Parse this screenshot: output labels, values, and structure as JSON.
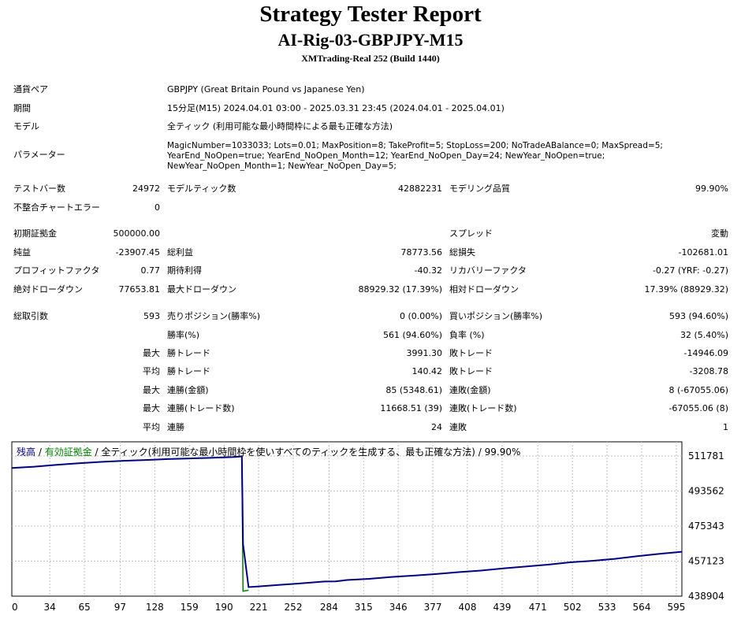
{
  "report": {
    "title": "Strategy Tester Report",
    "ea_name": "AI-Rig-03-GBPJPY-M15",
    "server": "XMTrading-Real 252 (Build 1440)"
  },
  "settings": {
    "symbol_label": "通貨ペア",
    "symbol_value": "GBPJPY (Great Britain Pound vs Japanese Yen)",
    "period_label": "期間",
    "period_value": "15分足(M15) 2024.04.01 03:00 - 2025.03.31 23:45 (2024.04.01 - 2025.04.01)",
    "model_label": "モデル",
    "model_value": "全ティック (利用可能な最小時間枠による最も正確な方法)",
    "params_label": "パラメーター",
    "params_lines": [
      "MagicNumber=1033033; Lots=0.01; MaxPosition=8; TakeProfit=5; StopLoss=200; NoTradeABalance=0; MaxSpread=5;",
      "YearEnd_NoOpen=true; YearEnd_NoOpen_Month=12; YearEnd_NoOpen_Day=24; NewYear_NoOpen=true;",
      "NewYear_NoOpen_Month=1; NewYear_NoOpen_Day=5;"
    ]
  },
  "test": {
    "bars_label": "テストバー数",
    "bars_value": "24972",
    "ticks_label": "モデルティック数",
    "ticks_value": "42882231",
    "quality_label": "モデリング品質",
    "quality_value": "99.90%",
    "errors_label": "不整合チャートエラー",
    "errors_value": "0"
  },
  "results": {
    "deposit_label": "初期証拠金",
    "deposit_value": "500000.00",
    "spread_label": "スプレッド",
    "spread_value": "変動",
    "net_label": "純益",
    "net_value": "-23907.45",
    "gross_profit_label": "総利益",
    "gross_profit_value": "78773.56",
    "gross_loss_label": "総損失",
    "gross_loss_value": "-102681.01",
    "pf_label": "プロフィットファクタ",
    "pf_value": "0.77",
    "payoff_label": "期待利得",
    "payoff_value": "-40.32",
    "recovery_label": "リカバリーファクタ",
    "recovery_value": "-0.27 (YRF: -0.27)",
    "abs_dd_label": "絶対ドローダウン",
    "abs_dd_value": "77653.81",
    "max_dd_label": "最大ドローダウン",
    "max_dd_value": "88929.32 (17.39%)",
    "rel_dd_label": "相対ドローダウン",
    "rel_dd_value": "17.39% (88929.32)"
  },
  "trades": {
    "total_label": "総取引数",
    "total_value": "593",
    "short_label": "売りポジション(勝率%)",
    "short_value": "0 (0.00%)",
    "long_label": "買いポジション(勝率%)",
    "long_value": "593 (94.60%)",
    "rows": [
      {
        "prefix": "",
        "l1": "勝率(%)",
        "v1": "561 (94.60%)",
        "l2": "負率 (%)",
        "v2": "32 (5.40%)"
      },
      {
        "prefix": "最大",
        "l1": "勝トレード",
        "v1": "3991.30",
        "l2": "敗トレード",
        "v2": "-14946.09"
      },
      {
        "prefix": "平均",
        "l1": "勝トレード",
        "v1": "140.42",
        "l2": "敗トレード",
        "v2": "-3208.78"
      },
      {
        "prefix": "最大",
        "l1": "連勝(金額)",
        "v1": "85 (5348.61)",
        "l2": "連敗(金額)",
        "v2": "8 (-67055.06)"
      },
      {
        "prefix": "最大",
        "l1": "連勝(トレード数)",
        "v1": "11668.51 (39)",
        "l2": "連敗(トレード数)",
        "v2": "-67055.06 (8)"
      },
      {
        "prefix": "平均",
        "l1": "連勝",
        "v1": "24",
        "l2": "連敗",
        "v2": "1"
      }
    ]
  },
  "chart_legend": {
    "balance": "残高",
    "sep1": " / ",
    "equity": "有効証拠金",
    "rest": " / 全ティック(利用可能な最小時間枠を使いすべてのティックを生成する、最も正確な方法) / 99.90%"
  },
  "chart_data": {
    "type": "line",
    "x_ticks": [
      0,
      34,
      65,
      97,
      128,
      159,
      190,
      221,
      252,
      284,
      315,
      346,
      377,
      408,
      439,
      471,
      502,
      533,
      564,
      595
    ],
    "y_ticks": [
      "511781",
      "493562",
      "475343",
      "457123",
      "438904"
    ],
    "ylim": [
      438904,
      511781
    ],
    "xlim": [
      0,
      600
    ],
    "colors": {
      "balance": "#000080",
      "equity": "#008000",
      "grid": "#c0c0c0"
    },
    "series": [
      {
        "name": "残高",
        "points": [
          [
            0,
            505500
          ],
          [
            20,
            506200
          ],
          [
            40,
            507200
          ],
          [
            60,
            508000
          ],
          [
            80,
            508700
          ],
          [
            100,
            509300
          ],
          [
            120,
            509700
          ],
          [
            140,
            510200
          ],
          [
            160,
            510500
          ],
          [
            180,
            510900
          ],
          [
            200,
            511300
          ],
          [
            206,
            511600
          ],
          [
            207,
            466000
          ],
          [
            212,
            443600
          ],
          [
            220,
            443900
          ],
          [
            240,
            444800
          ],
          [
            260,
            445600
          ],
          [
            280,
            446500
          ],
          [
            290,
            446600
          ],
          [
            300,
            447300
          ],
          [
            320,
            447900
          ],
          [
            340,
            448900
          ],
          [
            360,
            449600
          ],
          [
            380,
            450400
          ],
          [
            400,
            451400
          ],
          [
            420,
            452200
          ],
          [
            440,
            453300
          ],
          [
            460,
            454300
          ],
          [
            480,
            455300
          ],
          [
            500,
            456500
          ],
          [
            520,
            457300
          ],
          [
            540,
            458300
          ],
          [
            560,
            459700
          ],
          [
            580,
            460900
          ],
          [
            600,
            462000
          ]
        ]
      },
      {
        "name": "有効証拠金",
        "points": [
          [
            206,
            511600
          ],
          [
            207,
            441500
          ],
          [
            212,
            442000
          ]
        ]
      }
    ]
  }
}
